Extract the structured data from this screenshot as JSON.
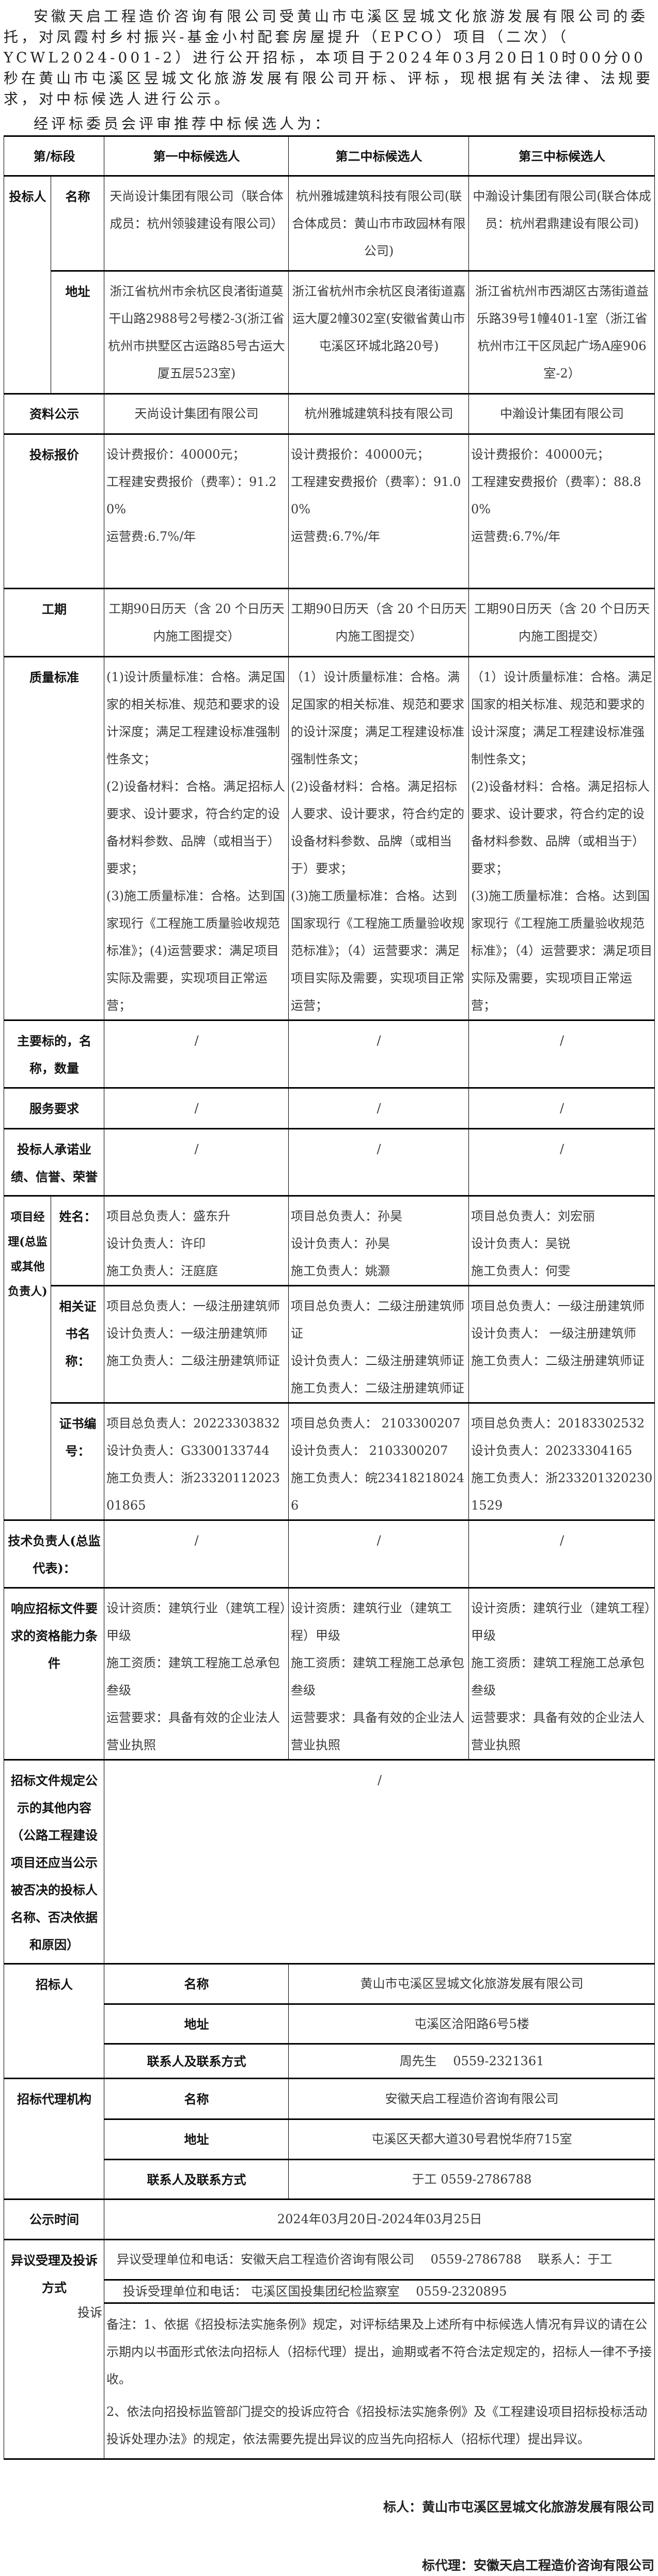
{
  "intro": {
    "paragraph1": "安徽天启工程造价咨询有限公司受黄山市屯溪区昱城文化旅游发展有限公司的委托，对凤霞村乡村振兴-基金小村配套房屋提升（EPCO）项目（二次）（ YCWL2024-001-2）进行公开招标，本项目于2024年03月20日10时00分00秒在黄山市屯溪区昱城文化旅游发展有限公司开标、评标，现根据有关法律、法规要求，对中标候选人进行公示。",
    "paragraph2": "经评标委员会评审推荐中标候选人为："
  },
  "labels": {
    "section": "第/标段",
    "bidder": "投标人",
    "name": "名称",
    "address": "地址",
    "materials": "资料公示",
    "price": "投标报价",
    "period": "工期",
    "quality": "质量标准",
    "subject": "主要标的，名称，数量",
    "service": "服务要求",
    "performance": "投标人承诺业绩、信誉、荣誉",
    "manager": "项目经理(总监或其他负责人)",
    "person_name": "姓名：",
    "cert_name": "相关证书名称：",
    "cert_no": "证书编号：",
    "tech_lead": "技术负责人(总监代表)：",
    "qualification": "响应招标文件要求的资格能力条件",
    "other": "招标文件规定公示的其他内容（公路工程建设项目还应当公示被否决的投标人名称、否决依据和原因）",
    "tenderer": "招标人",
    "agency": "招标代理机构",
    "contact": "联系人及联系方式",
    "publicity_time": "公示时间",
    "objection": "异议受理及投诉方式",
    "complaint_stray": "投诉"
  },
  "headers": [
    "第一中标候选人",
    "第二中标候选人",
    "第三中标候选人"
  ],
  "bidders": [
    {
      "name": "天尚设计集团有限公司（联合体成员：杭州领骏建设有限公司）",
      "address": "浙江省杭州市余杭区良渚街道莫干山路2988号2号楼2-3(浙江省杭州市拱墅区古运路85号古运大厦五层523室)",
      "materials": "天尚设计集团有限公司",
      "price": [
        "设计费报价：40000元；",
        "工程建安费报价（费率）：91.20%",
        "运营费:6.7%/年"
      ],
      "period": "工期90日历天（含 20 个日历天内施工图提交）",
      "quality": [
        "(1)设计质量标准：合格。满足国家的相关标准、规范和要求的设计深度；满足工程建设标准强制性条文；",
        "(2)设备材料：合格。满足招标人要求、设计要求，符合约定的设备材料参数、品牌（或相当于）要求；",
        "(3)施工质量标准：合格。达到国家现行《工程施工质量验收规范标准》；(4)运营要求：满足项目实际及需要，实现项目正常运营；"
      ],
      "subject": "/",
      "service": "/",
      "performance": "/",
      "persons": [
        "项目总负责人：盛东升",
        "设计负责人：许印",
        "施工负责人：汪庭庭"
      ],
      "certs": [
        "项目总负责人：一级注册建筑师",
        "设计负责人：一级注册建筑师",
        "施工负责人：二级注册建筑师证"
      ],
      "cert_nos": [
        "项目总负责人：20223303832",
        "设计负责人：G3300133744",
        "施工负责人：浙2332011202301865"
      ],
      "tech_lead": "/",
      "qualification": [
        "设计资质：建筑行业（建筑工程）甲级",
        "施工资质：建筑工程施工总承包叁级",
        "运营要求：具备有效的企业法人营业执照"
      ]
    },
    {
      "name": "杭州雅城建筑科技有限公司(联合体成员：黄山市市政园林有限公司)",
      "address": "浙江省杭州市余杭区良渚街道嘉运大厦2幢302室(安徽省黄山市屯溪区环城北路20号)",
      "materials": "杭州雅城建筑科技有限公司",
      "price": [
        "设计费报价：40000元；",
        "工程建安费报价（费率）：91.00%",
        "运营费:6.7%/年"
      ],
      "period": "工期90日历天（含 20 个日历天内施工图提交）",
      "quality": [
        "（1）设计质量标准：合格。满足国家的相关标准、规范和要求的设计深度；满足工程建设标准强制性条文；",
        "(2)设备材料：合格。满足招标人要求、设计要求，符合约定的设备材料参数、品牌（或相当于）要求；",
        "(3)施工质量标准：合格。达到国家现行《工程施工质量验收规范标准》；（4）运营要求：满足项目实际及需要，实现项目正常运营；"
      ],
      "subject": "/",
      "service": "/",
      "performance": "/",
      "persons": [
        "项目总负责人：孙昊",
        "设计负责人：孙昊",
        "施工负责人：姚灏"
      ],
      "certs": [
        "项目总负责人：二级注册建筑师证",
        "设计负责人：二级注册建筑师证",
        "施工负责人：二级注册建筑师证"
      ],
      "cert_nos": [
        "项目总负责人： 2103300207",
        "设计负责人： 2103300207",
        "施工负责人：皖234182180246"
      ],
      "tech_lead": "/",
      "qualification": [
        "设计资质：建筑行业（建筑工程）甲级",
        "施工资质：建筑工程施工总承包叁级",
        "运营要求：具备有效的企业法人营业执照"
      ]
    },
    {
      "name": "中瀚设计集团有限公司(联合体成员：杭州君鼎建设有限公司)",
      "address": "浙江省杭州市西湖区古荡街道益乐路39号1幢401-1室（浙江省杭州市江干区凤起广场A座906室-2）",
      "materials": "中瀚设计集团有限公司",
      "price": [
        "设计费报价：40000元；",
        "工程建安费报价（费率）：88.80%",
        "运营费:6.7%/年"
      ],
      "period": "工期90日历天（含 20 个日历天内施工图提交）",
      "quality": [
        "（1）设计质量标准：合格。满足国家的相关标准、规范和要求的设计深度；满足工程建设标准强制性条文；",
        "(2)设备材料：合格。满足招标人要求、设计要求，符合约定的设备材料参数、品牌（或相当于）要求；",
        "(3)施工质量标准：合格。达到国家现行《工程施工质量验收规范标准》；（4）运营要求：满足项目实际及需要，实现项目正常运营；"
      ],
      "subject": "/",
      "service": "/",
      "performance": "/",
      "persons": [
        "项目总负责人：刘宏丽",
        "设计负责人：吴锐",
        "施工负责人：何雯"
      ],
      "certs": [
        "项目总负责人：一级注册建筑师",
        "设计负责人： 一级注册建筑师",
        "施工负责人：二级注册建筑师证"
      ],
      "cert_nos": [
        "项目总负责人：20183302532",
        "设计负责人：20233304165",
        "施工负责人：浙2332013202301529"
      ],
      "tech_lead": "/",
      "qualification": [
        "设计资质：建筑行业（建筑工程）甲级",
        "施工资质：建筑工程施工总承包叁级",
        "运营要求：具备有效的企业法人营业执照"
      ]
    }
  ],
  "other_content": "/",
  "tenderer": {
    "name": "黄山市屯溪区昱城文化旅游发展有限公司",
    "address": "屯溪区洽阳路6号5楼",
    "contact": "周先生　 0559-2321361"
  },
  "agency": {
    "name": "安徽天启工程造价咨询有限公司",
    "address": "屯溪区天都大道30号君悦华府715室",
    "contact": "于工 0559-2786788"
  },
  "publicity_time": "2024年03月20日-2024年03月25日",
  "objection_line": "异议受理单位和电话：安徽天启工程造价咨询有限公司　 0559-2786788　 联系人：于工",
  "complaint_line": "投诉受理单位和电话： 屯溪区国投集团纪检监察室　 0559-2320895",
  "notes": [
    "备注：1、依据《招投标法实施条例》规定，对评标结果及上述所有中标候选人情况有异议的请在公示期内以书面形式依法向招标人（招标代理）提出，逾期或者不符合法定规定的，招标人一律不予接收。",
    "2、依法向招投标监管部门提交的投诉应符合《招投标法实施条例》及《工程建设项目招标投标活动投诉处理办法》的规定，依法需要先提出异议的应当先向招标人（招标代理）提出异议。"
  ],
  "signatures": {
    "tenderer": "标人：黄山市屯溪区昱城文化旅游发展有限公司",
    "agency": "标代理：安徽天启工程造价咨询有限公司"
  }
}
